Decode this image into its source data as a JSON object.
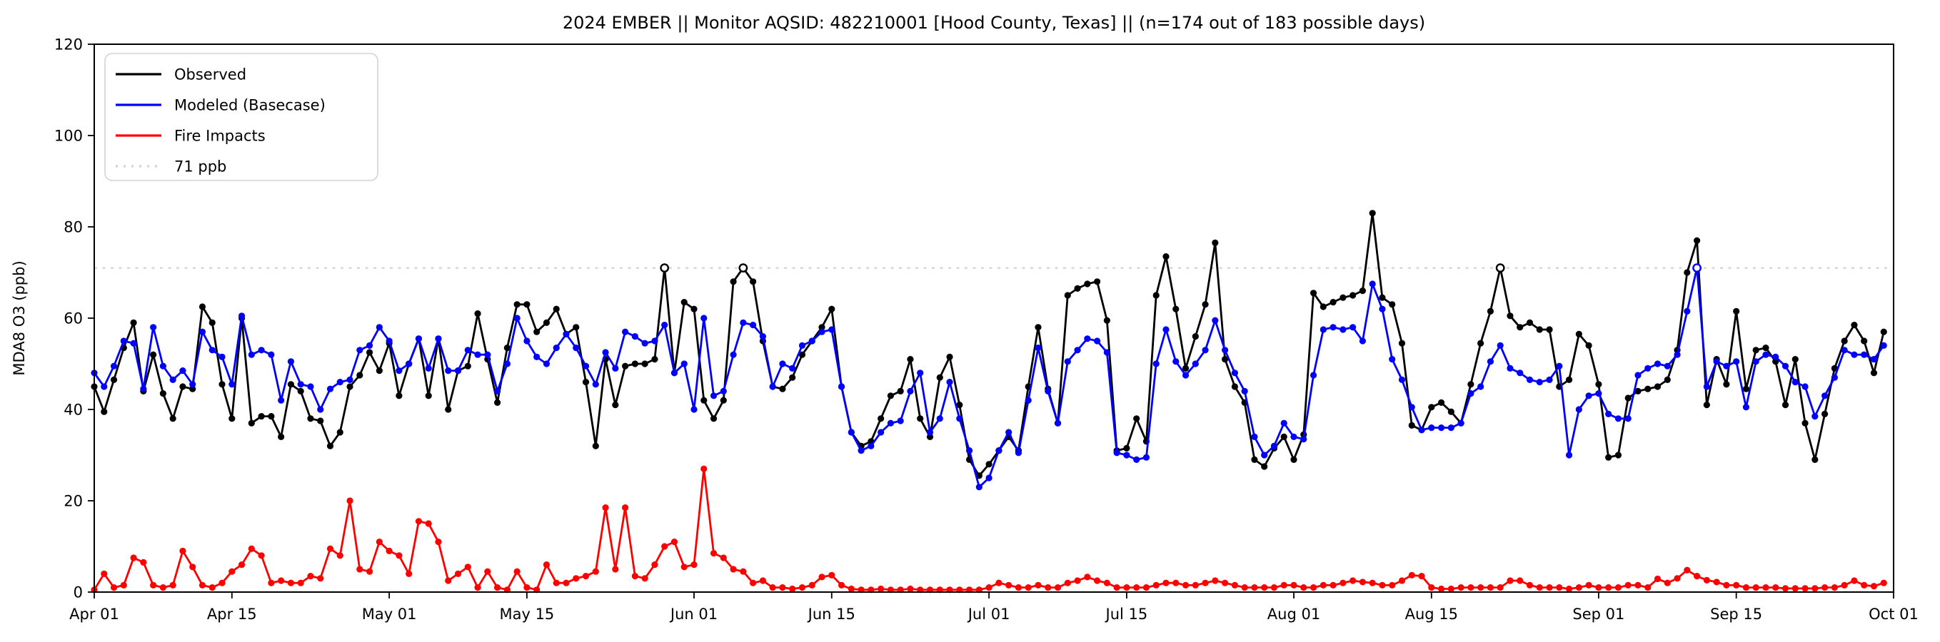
{
  "title": "2024 EMBER || Monitor AQSID: 482210001 [Hood County, Texas] || (n=174 out of 183 possible days)",
  "ylabel": "MDA8 O3 (ppb)",
  "chart_data": {
    "type": "line",
    "x_tick_labels": [
      "Apr 01",
      "Apr 15",
      "May 01",
      "May 15",
      "Jun 01",
      "Jun 15",
      "Jul 01",
      "Jul 15",
      "Aug 01",
      "Aug 15",
      "Sep 01",
      "Sep 15",
      "Oct 01"
    ],
    "x_tick_days": [
      0,
      14,
      30,
      44,
      61,
      75,
      91,
      105,
      122,
      136,
      153,
      167,
      183
    ],
    "yticks": [
      0,
      20,
      40,
      60,
      80,
      100,
      120
    ],
    "ylim": [
      0,
      120
    ],
    "n_days": 183,
    "grid": false,
    "legend_position": "upper left",
    "threshold": {
      "value": 71,
      "label": "71 ppb",
      "color": "#d3d3d3"
    },
    "series": [
      {
        "name": "Observed",
        "color": "#000000",
        "open_points": [
          58,
          66,
          143
        ],
        "values": [
          45,
          39.5,
          46.5,
          53.5,
          59,
          44,
          52,
          43.5,
          38,
          45,
          44.5,
          62.5,
          59,
          45.5,
          38,
          60,
          37,
          38.5,
          38.5,
          34,
          45.5,
          44,
          38,
          37.5,
          32,
          35,
          45,
          47.5,
          52.5,
          48.5,
          54.5,
          43,
          50,
          55.5,
          43,
          55.5,
          40,
          48.5,
          49.5,
          61,
          51,
          41.5,
          53.5,
          63,
          63,
          57,
          59,
          62,
          56.5,
          58,
          46,
          32,
          51,
          41,
          49.5,
          50,
          50,
          51,
          71,
          48,
          63.5,
          62,
          42,
          38,
          42,
          68,
          71,
          68,
          55,
          45,
          44.5,
          47,
          52,
          55,
          58,
          62,
          45,
          35,
          32,
          33,
          38,
          43,
          44,
          51,
          38,
          34,
          47,
          51.5,
          41,
          29,
          25.5,
          28,
          31,
          34,
          31,
          45,
          58,
          44.5,
          37,
          65,
          66.5,
          67.5,
          68,
          59.5,
          31,
          31.5,
          38,
          33,
          65,
          73.5,
          62,
          49,
          56,
          63,
          76.5,
          51,
          45,
          41.5,
          29,
          27.5,
          31.5,
          34,
          29,
          34.5,
          65.5,
          62.5,
          63.5,
          64.5,
          65,
          66,
          83,
          64.5,
          63,
          54.5,
          36.5,
          35.5,
          40.5,
          41.5,
          39.5,
          37,
          45.5,
          54.5,
          61.5,
          71,
          60.5,
          58,
          59,
          57.5,
          57.5,
          45,
          46.5,
          56.5,
          54,
          45.5,
          29.5,
          30,
          42.5,
          44,
          44.5,
          45,
          46.5,
          53,
          70,
          77,
          41,
          51,
          45.5,
          61.5,
          44.5,
          53,
          53.5,
          50.5,
          41,
          51,
          37,
          29,
          39,
          49,
          55,
          58.5,
          55,
          48,
          57
        ]
      },
      {
        "name": "Modeled (Basecase)",
        "color": "#0000ff",
        "open_points": [
          163
        ],
        "values": [
          48,
          45,
          49.5,
          55,
          54.5,
          44.5,
          58,
          49.5,
          46.5,
          48.5,
          45.5,
          57,
          53,
          51.5,
          45.5,
          60.5,
          52,
          53,
          52,
          42,
          50.5,
          45.5,
          45,
          40,
          44.5,
          46,
          46.5,
          53,
          54,
          58,
          55,
          48.5,
          50,
          55.5,
          49,
          55.5,
          48.5,
          48.5,
          53,
          52,
          52,
          44,
          50,
          60,
          55,
          51.5,
          50,
          53.5,
          56.5,
          53.5,
          49.5,
          45.5,
          52.5,
          49,
          57,
          56,
          54.5,
          55,
          58.5,
          48,
          50,
          40,
          60,
          43,
          44,
          52,
          59,
          58.5,
          56,
          45,
          50,
          49,
          54,
          55,
          57,
          57.5,
          45,
          35,
          31,
          32,
          35,
          37,
          37.5,
          44,
          48,
          35,
          38,
          46,
          38,
          31,
          23,
          25,
          31,
          35,
          30.5,
          42,
          53.5,
          44,
          37,
          50.5,
          53,
          55.5,
          55,
          52.5,
          30.5,
          30,
          29,
          29.5,
          50,
          57.5,
          50.5,
          47.5,
          50,
          53,
          59.5,
          53,
          48,
          44,
          34,
          30,
          32,
          37,
          34,
          33.5,
          47.5,
          57.5,
          58,
          57.5,
          58,
          55,
          67.5,
          62,
          51,
          46.5,
          40.5,
          35.5,
          36,
          36,
          36,
          37,
          43.5,
          45,
          50.5,
          54,
          49,
          48,
          46.5,
          46,
          46.5,
          49.5,
          30,
          40,
          43,
          43.5,
          39,
          38,
          38,
          47.5,
          49,
          50,
          49.5,
          52,
          61.5,
          71,
          45,
          50.5,
          49.5,
          50.5,
          40.5,
          50.5,
          52,
          51.5,
          49.5,
          46,
          45,
          38.5,
          43,
          47,
          53,
          52,
          52,
          51,
          54
        ]
      },
      {
        "name": "Fire Impacts",
        "color": "#ff0000",
        "open_points": [],
        "values": [
          0.5,
          4,
          1,
          1.5,
          7.5,
          6.5,
          1.5,
          1,
          1.5,
          9,
          5.5,
          1.5,
          1,
          2,
          4.5,
          6,
          9.5,
          8,
          2,
          2.5,
          2,
          2,
          3.5,
          3,
          9.5,
          8,
          20,
          5,
          4.5,
          11,
          9,
          8,
          4,
          15.5,
          15,
          11,
          2.5,
          4,
          5.5,
          1,
          4.5,
          1,
          0.5,
          4.5,
          1,
          0.5,
          6,
          2,
          2,
          3,
          3.5,
          4.5,
          18.5,
          5,
          18.5,
          3.5,
          3,
          6,
          10,
          11,
          5.5,
          6,
          27,
          8.5,
          7.5,
          5,
          4.5,
          2,
          2.5,
          1,
          1,
          0.7,
          1,
          1.5,
          3.3,
          3.7,
          1.5,
          0.7,
          0.5,
          0.5,
          0.7,
          0.5,
          0.5,
          0.7,
          0.5,
          0.5,
          0.5,
          0.5,
          0.5,
          0.5,
          0.5,
          1,
          2,
          1.5,
          1,
          1,
          1.5,
          1,
          1,
          2,
          2.5,
          3.3,
          2.5,
          2,
          1,
          1,
          1,
          1,
          1.5,
          2,
          2,
          1.5,
          1.5,
          2,
          2.5,
          2,
          1.5,
          1,
          1,
          1,
          1,
          1.5,
          1.5,
          1,
          1,
          1.5,
          1.5,
          2,
          2.5,
          2.2,
          2,
          1.5,
          1.5,
          2.5,
          3.7,
          3.5,
          1,
          0.7,
          0.7,
          1,
          1,
          1,
          1,
          1,
          2.5,
          2.5,
          1.5,
          1,
          1,
          1,
          0.7,
          1,
          1.5,
          1,
          1,
          1,
          1.5,
          1.5,
          1,
          2.9,
          2,
          3,
          4.8,
          3.5,
          2.6,
          2.2,
          1.5,
          1.5,
          1,
          1,
          1,
          1,
          0.8,
          0.8,
          0.8,
          0.8,
          1,
          1,
          1.5,
          2.5,
          1.5,
          1.3,
          2
        ]
      }
    ],
    "legend_entries": [
      {
        "label": "Observed",
        "color": "#000000",
        "style": "solid"
      },
      {
        "label": "Modeled (Basecase)",
        "color": "#0000ff",
        "style": "solid"
      },
      {
        "label": "Fire Impacts",
        "color": "#ff0000",
        "style": "solid"
      },
      {
        "label": "71 ppb",
        "color": "#d3d3d3",
        "style": "dotted"
      }
    ]
  }
}
